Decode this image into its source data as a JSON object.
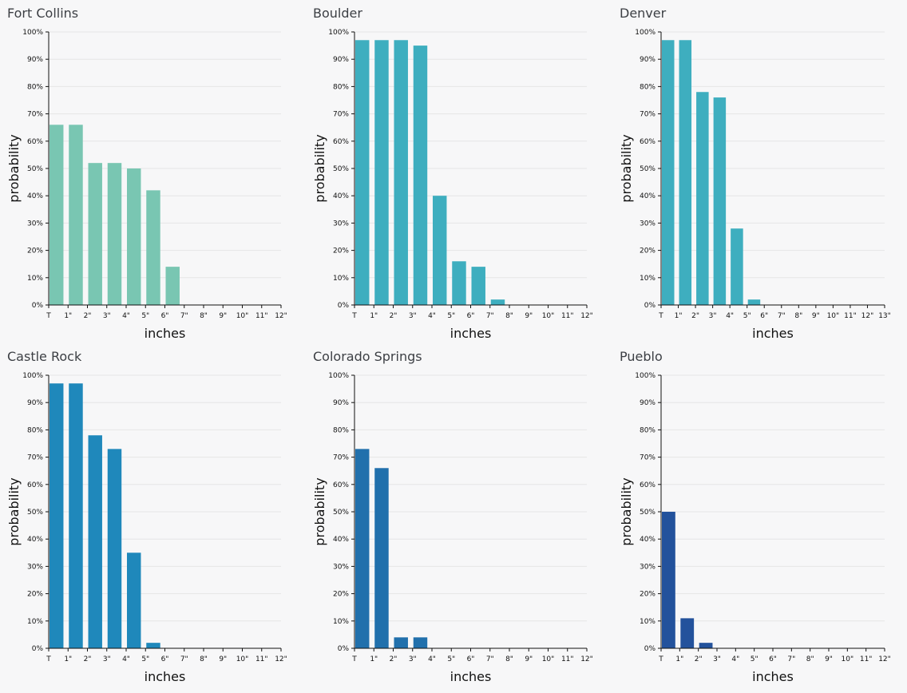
{
  "chart_data": [
    {
      "type": "bar",
      "title": "Fort Collins",
      "xlabel": "inches",
      "ylabel": "probability",
      "color": "#79c6b2",
      "categories": [
        "T",
        "1\"",
        "2\"",
        "3\"",
        "4\"",
        "5\"",
        "6\"",
        "7\"",
        "8\"",
        "9\"",
        "10\"",
        "11\"",
        "12\""
      ],
      "values": [
        66,
        66,
        52,
        52,
        50,
        42,
        14,
        0,
        0,
        0,
        0,
        0,
        0
      ],
      "ylim": [
        0,
        100
      ],
      "yticks": [
        "0%",
        "10%",
        "20%",
        "30%",
        "40%",
        "50%",
        "60%",
        "70%",
        "80%",
        "90%",
        "100%"
      ],
      "grid": true
    },
    {
      "type": "bar",
      "title": "Boulder",
      "xlabel": "inches",
      "ylabel": "probability",
      "color": "#3eaebf",
      "categories": [
        "T",
        "1\"",
        "2\"",
        "3\"",
        "4\"",
        "5\"",
        "6\"",
        "7\"",
        "8\"",
        "9\"",
        "10\"",
        "11\"",
        "12\""
      ],
      "values": [
        97,
        97,
        97,
        95,
        40,
        16,
        14,
        2,
        0,
        0,
        0,
        0,
        0
      ],
      "ylim": [
        0,
        100
      ],
      "yticks": [
        "0%",
        "10%",
        "20%",
        "30%",
        "40%",
        "50%",
        "60%",
        "70%",
        "80%",
        "90%",
        "100%"
      ],
      "grid": true
    },
    {
      "type": "bar",
      "title": "Denver",
      "xlabel": "inches",
      "ylabel": "probability",
      "color": "#3eaebf",
      "categories": [
        "T",
        "1\"",
        "2\"",
        "3\"",
        "4\"",
        "5\"",
        "6\"",
        "7\"",
        "8\"",
        "9\"",
        "10\"",
        "11\"",
        "12\"",
        "13\""
      ],
      "values": [
        97,
        97,
        78,
        76,
        28,
        2,
        0,
        0,
        0,
        0,
        0,
        0,
        0,
        0
      ],
      "ylim": [
        0,
        100
      ],
      "yticks": [
        "0%",
        "10%",
        "20%",
        "30%",
        "40%",
        "50%",
        "60%",
        "70%",
        "80%",
        "90%",
        "100%"
      ],
      "grid": true
    },
    {
      "type": "bar",
      "title": "Castle Rock",
      "xlabel": "inches",
      "ylabel": "probability",
      "color": "#1f88bb",
      "categories": [
        "T",
        "1\"",
        "2\"",
        "3\"",
        "4\"",
        "5\"",
        "6\"",
        "7\"",
        "8\"",
        "9\"",
        "10\"",
        "11\"",
        "12\""
      ],
      "values": [
        97,
        97,
        78,
        73,
        35,
        2,
        0,
        0,
        0,
        0,
        0,
        0,
        0
      ],
      "ylim": [
        0,
        100
      ],
      "yticks": [
        "0%",
        "10%",
        "20%",
        "30%",
        "40%",
        "50%",
        "60%",
        "70%",
        "80%",
        "90%",
        "100%"
      ],
      "grid": true
    },
    {
      "type": "bar",
      "title": "Colorado Springs",
      "xlabel": "inches",
      "ylabel": "probability",
      "color": "#2170ac",
      "categories": [
        "T",
        "1\"",
        "2\"",
        "3\"",
        "4\"",
        "5\"",
        "6\"",
        "7\"",
        "8\"",
        "9\"",
        "10\"",
        "11\"",
        "12\""
      ],
      "values": [
        73,
        66,
        4,
        4,
        0,
        0,
        0,
        0,
        0,
        0,
        0,
        0,
        0
      ],
      "ylim": [
        0,
        100
      ],
      "yticks": [
        "0%",
        "10%",
        "20%",
        "30%",
        "40%",
        "50%",
        "60%",
        "70%",
        "80%",
        "90%",
        "100%"
      ],
      "grid": true
    },
    {
      "type": "bar",
      "title": "Pueblo",
      "xlabel": "inches",
      "ylabel": "probability",
      "color": "#23529c",
      "categories": [
        "T",
        "1\"",
        "2\"",
        "3\"",
        "4\"",
        "5\"",
        "6\"",
        "7\"",
        "8\"",
        "9\"",
        "10\"",
        "11\"",
        "12\""
      ],
      "values": [
        50,
        11,
        2,
        0,
        0,
        0,
        0,
        0,
        0,
        0,
        0,
        0,
        0
      ],
      "ylim": [
        0,
        100
      ],
      "yticks": [
        "0%",
        "10%",
        "20%",
        "30%",
        "40%",
        "50%",
        "60%",
        "70%",
        "80%",
        "90%",
        "100%"
      ],
      "grid": true
    }
  ]
}
